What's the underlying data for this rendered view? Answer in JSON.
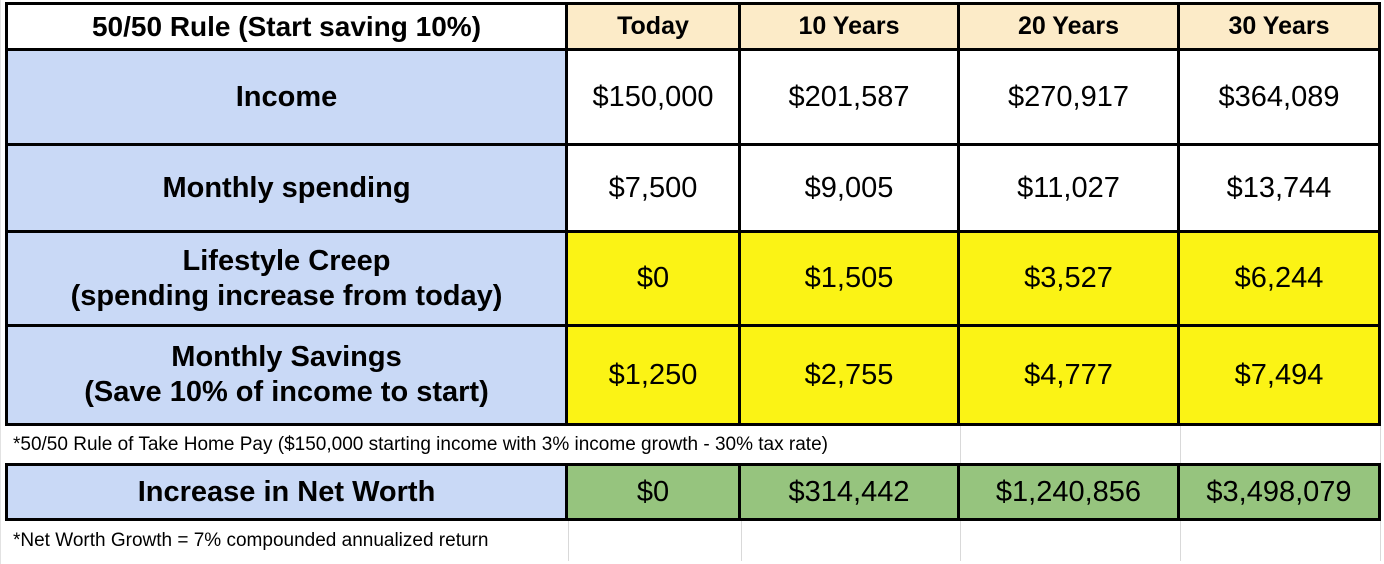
{
  "table": {
    "title": "50/50 Rule (Start saving 10%)",
    "columns": [
      "Today",
      "10 Years",
      "20 Years",
      "30 Years"
    ],
    "rows": [
      {
        "label": "Income",
        "values": [
          "$150,000",
          "$201,587",
          "$270,917",
          "$364,089"
        ]
      },
      {
        "label": "Monthly spending",
        "values": [
          "$7,500",
          "$9,005",
          "$11,027",
          "$13,744"
        ]
      },
      {
        "label": "Lifestyle Creep",
        "sublabel": "(spending increase from today)",
        "values": [
          "$0",
          "$1,505",
          "$3,527",
          "$6,244"
        ]
      },
      {
        "label": "Monthly Savings",
        "sublabel": "(Save 10% of income to start)",
        "values": [
          "$1,250",
          "$2,755",
          "$4,777",
          "$7,494"
        ]
      }
    ],
    "footnote_income": "*50/50 Rule of Take Home Pay ($150,000 starting income with 3% income growth - 30% tax rate)",
    "net_worth": {
      "label": "Increase in Net Worth",
      "values": [
        "$0",
        "$314,442",
        "$1,240,856",
        "$3,498,079"
      ]
    },
    "footnote_net_worth": "*Net Worth Growth = 7% compounded annualized return"
  },
  "colors": {
    "column_header_bg": "#FCEBC8",
    "row_label_bg": "#C9D9F6",
    "highlight_yellow": "#FBF315",
    "net_worth_green": "#96C47E",
    "border_black": "#000000",
    "gridline_gray": "#D9D9D9"
  },
  "chart_data": {
    "type": "table",
    "title": "50/50 Rule (Start saving 10%)",
    "columns": [
      "Today",
      "10 Years",
      "20 Years",
      "30 Years"
    ],
    "rows": [
      {
        "label": "Income",
        "values": [
          150000,
          201587,
          270917,
          364089
        ]
      },
      {
        "label": "Monthly spending",
        "values": [
          7500,
          9005,
          11027,
          13744
        ]
      },
      {
        "label": "Lifestyle Creep (spending increase from today)",
        "values": [
          0,
          1505,
          3527,
          6244
        ]
      },
      {
        "label": "Monthly Savings (Save 10% of income to start)",
        "values": [
          1250,
          2755,
          4777,
          7494
        ]
      },
      {
        "label": "Increase in Net Worth",
        "values": [
          0,
          314442,
          1240856,
          3498079
        ]
      }
    ],
    "footnotes": [
      "*50/50 Rule of Take Home Pay ($150,000 starting income with 3% income growth - 30% tax rate)",
      "*Net Worth Growth = 7% compounded annualized return"
    ]
  }
}
